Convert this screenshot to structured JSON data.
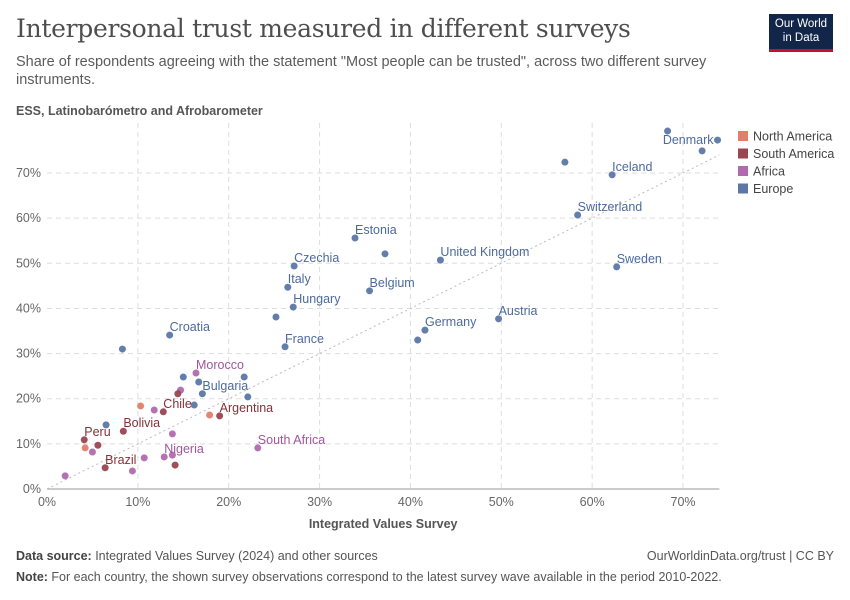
{
  "header": {
    "title": "Interpersonal trust measured in different surveys",
    "subtitle": "Share of respondents agreeing with the statement \"Most people can be trusted\", across two different survey instruments.",
    "source_label": "ESS, Latinobarómetro and Afrobarometer",
    "logo": "Our World in Data"
  },
  "footer": {
    "source_prefix": "Data source:",
    "source": " Integrated Values Survey (2024) and other sources",
    "url": "OurWorldinData.org/trust | CC BY",
    "note_prefix": "Note:",
    "note": " For each country, the shown survey observations correspond to the latest survey wave available in the period 2010-2022."
  },
  "chart_data": {
    "type": "scatter",
    "xlabel": "Integrated Values Survey",
    "ylabel": "",
    "xlim": [
      0,
      74
    ],
    "ylim": [
      0,
      80
    ],
    "xticks": [
      "0%",
      "10%",
      "20%",
      "30%",
      "40%",
      "50%",
      "60%",
      "70%"
    ],
    "yticks": [
      "0%",
      "10%",
      "20%",
      "30%",
      "40%",
      "50%",
      "60%",
      "70%"
    ],
    "grid": true,
    "reference_line": "y = x",
    "legend_placement": "right",
    "legend": [
      {
        "name": "North America",
        "color": "#e07f6a"
      },
      {
        "name": "South America",
        "color": "#994652"
      },
      {
        "name": "Africa",
        "color": "#b16aad"
      },
      {
        "name": "Europe",
        "color": "#5c77a7"
      }
    ],
    "label_colors": {
      "North America": "#c0604c",
      "South America": "#883039",
      "Africa": "#a2559c",
      "Europe": "#4c6a9c"
    },
    "points": [
      {
        "label": "",
        "region": "Europe",
        "x": 68.3,
        "y": 79.3
      },
      {
        "label": "Denmark",
        "region": "Europe",
        "x": 73.8,
        "y": 77.3
      },
      {
        "label": "",
        "region": "Europe",
        "x": 72.1,
        "y": 74.9
      },
      {
        "label": "",
        "region": "Europe",
        "x": 57.0,
        "y": 72.4
      },
      {
        "label": "Iceland",
        "region": "Europe",
        "x": 62.2,
        "y": 69.6
      },
      {
        "label": "Switzerland",
        "region": "Europe",
        "x": 58.4,
        "y": 60.7
      },
      {
        "label": "Sweden",
        "region": "Europe",
        "x": 62.7,
        "y": 49.2
      },
      {
        "label": "Estonia",
        "region": "Europe",
        "x": 33.9,
        "y": 55.6
      },
      {
        "label": "",
        "region": "Europe",
        "x": 37.2,
        "y": 52.1
      },
      {
        "label": "United Kingdom",
        "region": "Europe",
        "x": 43.3,
        "y": 50.7
      },
      {
        "label": "Czechia",
        "region": "Europe",
        "x": 27.2,
        "y": 49.4
      },
      {
        "label": "Italy",
        "region": "Europe",
        "x": 26.5,
        "y": 44.7
      },
      {
        "label": "Belgium",
        "region": "Europe",
        "x": 35.5,
        "y": 43.9
      },
      {
        "label": "Hungary",
        "region": "Europe",
        "x": 27.1,
        "y": 40.3
      },
      {
        "label": "",
        "region": "Europe",
        "x": 25.2,
        "y": 38.1
      },
      {
        "label": "Austria",
        "region": "Europe",
        "x": 49.7,
        "y": 37.7
      },
      {
        "label": "Germany",
        "region": "Europe",
        "x": 41.6,
        "y": 35.2
      },
      {
        "label": "",
        "region": "Europe",
        "x": 40.8,
        "y": 33.0
      },
      {
        "label": "Croatia",
        "region": "Europe",
        "x": 13.5,
        "y": 34.1
      },
      {
        "label": "France",
        "region": "Europe",
        "x": 26.2,
        "y": 31.5
      },
      {
        "label": "",
        "region": "Europe",
        "x": 8.3,
        "y": 31.0
      },
      {
        "label": "",
        "region": "Europe",
        "x": 15.0,
        "y": 24.8
      },
      {
        "label": "Morocco",
        "region": "Africa",
        "x": 16.4,
        "y": 25.7
      },
      {
        "label": "",
        "region": "Europe",
        "x": 21.7,
        "y": 24.8
      },
      {
        "label": "",
        "region": "Europe",
        "x": 16.7,
        "y": 23.7
      },
      {
        "label": "Bulgaria",
        "region": "Europe",
        "x": 17.1,
        "y": 21.1
      },
      {
        "label": "",
        "region": "Africa",
        "x": 14.7,
        "y": 21.9
      },
      {
        "label": "",
        "region": "South America",
        "x": 14.4,
        "y": 21.1
      },
      {
        "label": "",
        "region": "Europe",
        "x": 22.1,
        "y": 20.4
      },
      {
        "label": "",
        "region": "Europe",
        "x": 16.2,
        "y": 18.6
      },
      {
        "label": "",
        "region": "North America",
        "x": 10.3,
        "y": 18.4
      },
      {
        "label": "",
        "region": "Africa",
        "x": 11.8,
        "y": 17.5
      },
      {
        "label": "Chile",
        "region": "South America",
        "x": 12.8,
        "y": 17.1
      },
      {
        "label": "",
        "region": "North America",
        "x": 17.9,
        "y": 16.4
      },
      {
        "label": "Argentina",
        "region": "South America",
        "x": 19.0,
        "y": 16.2
      },
      {
        "label": "",
        "region": "Europe",
        "x": 6.5,
        "y": 14.2
      },
      {
        "label": "Bolivia",
        "region": "South America",
        "x": 8.4,
        "y": 12.8
      },
      {
        "label": "",
        "region": "Africa",
        "x": 13.8,
        "y": 12.2
      },
      {
        "label": "Peru",
        "region": "South America",
        "x": 4.1,
        "y": 10.9
      },
      {
        "label": "",
        "region": "South America",
        "x": 5.6,
        "y": 9.7
      },
      {
        "label": "",
        "region": "North America",
        "x": 4.2,
        "y": 9.1
      },
      {
        "label": "",
        "region": "Africa",
        "x": 5.0,
        "y": 8.2
      },
      {
        "label": "South Africa",
        "region": "Africa",
        "x": 23.2,
        "y": 9.1
      },
      {
        "label": "",
        "region": "Africa",
        "x": 13.8,
        "y": 7.5
      },
      {
        "label": "Nigeria",
        "region": "Africa",
        "x": 12.9,
        "y": 7.1
      },
      {
        "label": "",
        "region": "Africa",
        "x": 10.7,
        "y": 6.9
      },
      {
        "label": "",
        "region": "South America",
        "x": 14.1,
        "y": 5.3
      },
      {
        "label": "Brazil",
        "region": "South America",
        "x": 6.4,
        "y": 4.7
      },
      {
        "label": "",
        "region": "Africa",
        "x": 9.4,
        "y": 4.0
      },
      {
        "label": "",
        "region": "Africa",
        "x": 2.0,
        "y": 2.9
      }
    ]
  }
}
